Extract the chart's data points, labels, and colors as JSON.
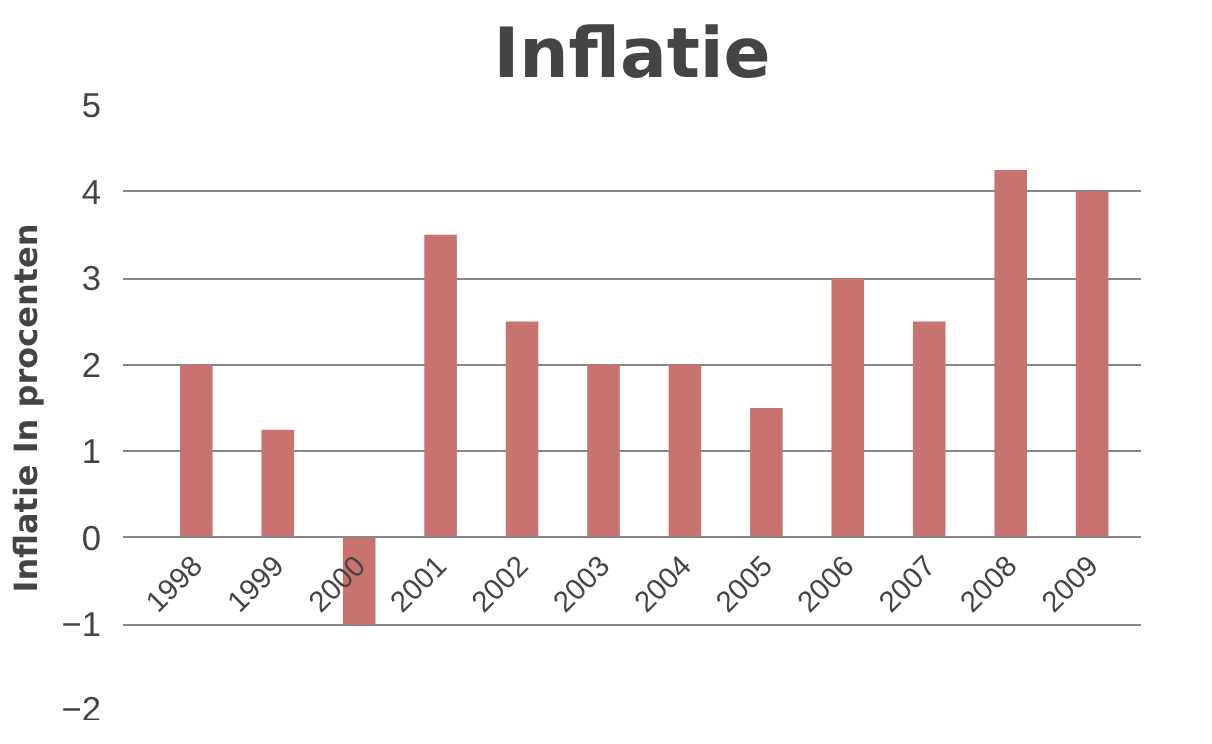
{
  "chart_data": {
    "type": "bar",
    "title": "Inflatie",
    "ylabel": "Inflatie In procenten",
    "categories": [
      "1998",
      "1999",
      "2000",
      "2001",
      "2002",
      "2003",
      "2004",
      "2005",
      "2006",
      "2007",
      "2008",
      "2009"
    ],
    "values": [
      2,
      1.25,
      -1,
      3.5,
      2.5,
      2,
      2,
      1.5,
      3,
      2.5,
      4.25,
      4
    ],
    "color": "#c97371",
    "ylim": [
      -2,
      5
    ],
    "yticks": [
      -2,
      -1,
      0,
      1,
      2,
      3,
      4,
      5
    ],
    "grid": "y"
  }
}
